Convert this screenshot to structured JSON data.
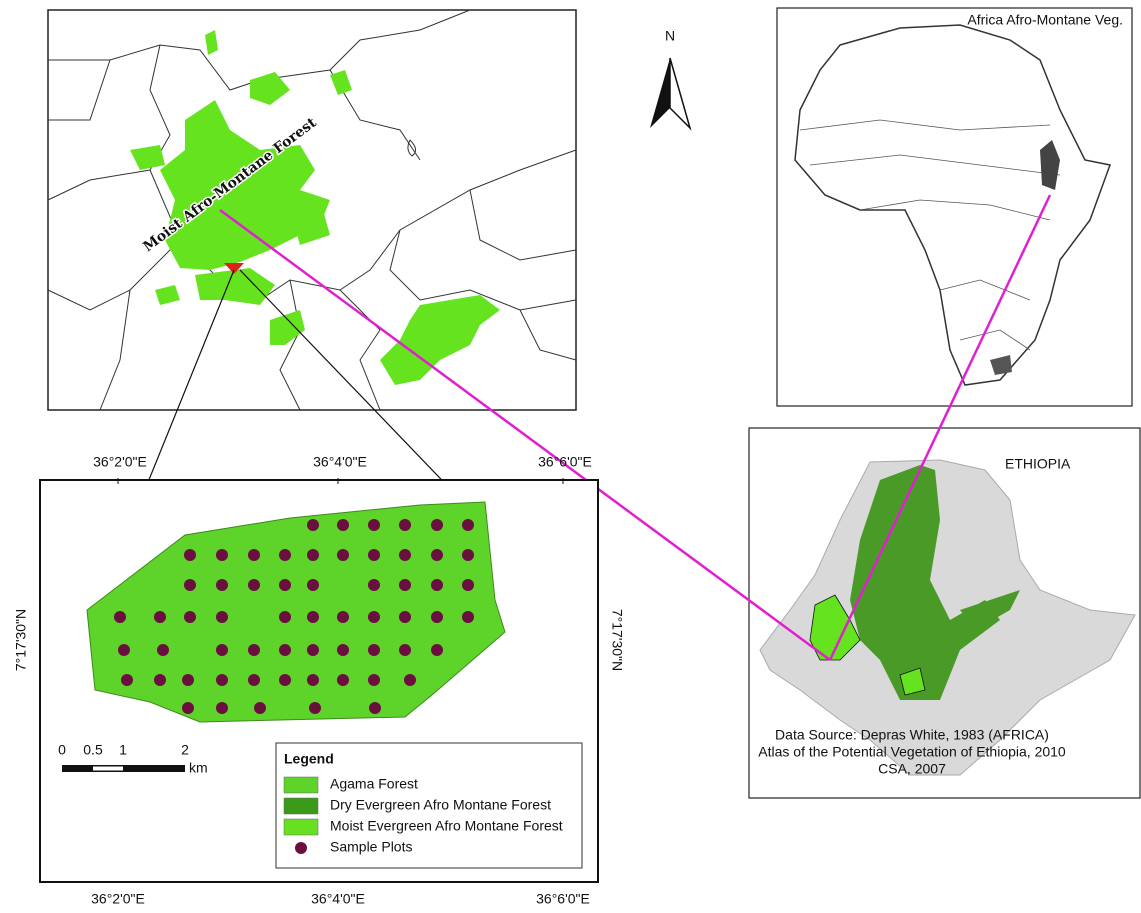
{
  "north_arrow": "N",
  "africa_inset": {
    "title": "Africa Afro-Montane Veg."
  },
  "region_map": {
    "label": "Moist Afro-Montane Forest"
  },
  "ethiopia_inset": {
    "title": "ETHIOPIA"
  },
  "study_map": {
    "x_labels": [
      "36°2'0\"E",
      "36°4'0\"E",
      "36°6'0\"E"
    ],
    "y_label": "7°17'30\"N",
    "legend": {
      "title": "Legend",
      "items": [
        "Agama Forest",
        "Dry Evergreen Afro Montane Forest",
        "Moist Evergreen Afro Montane Forest",
        "Sample Plots"
      ]
    },
    "scale_bar": {
      "labels": [
        "0",
        "0.5",
        "1",
        "2"
      ],
      "unit": "km"
    }
  },
  "data_source": [
    "Data Source: Depras White, 1983 (AFRICA)",
    "Atlas of the Potential Vegetation of Ethiopia, 2010",
    "CSA, 2007"
  ]
}
